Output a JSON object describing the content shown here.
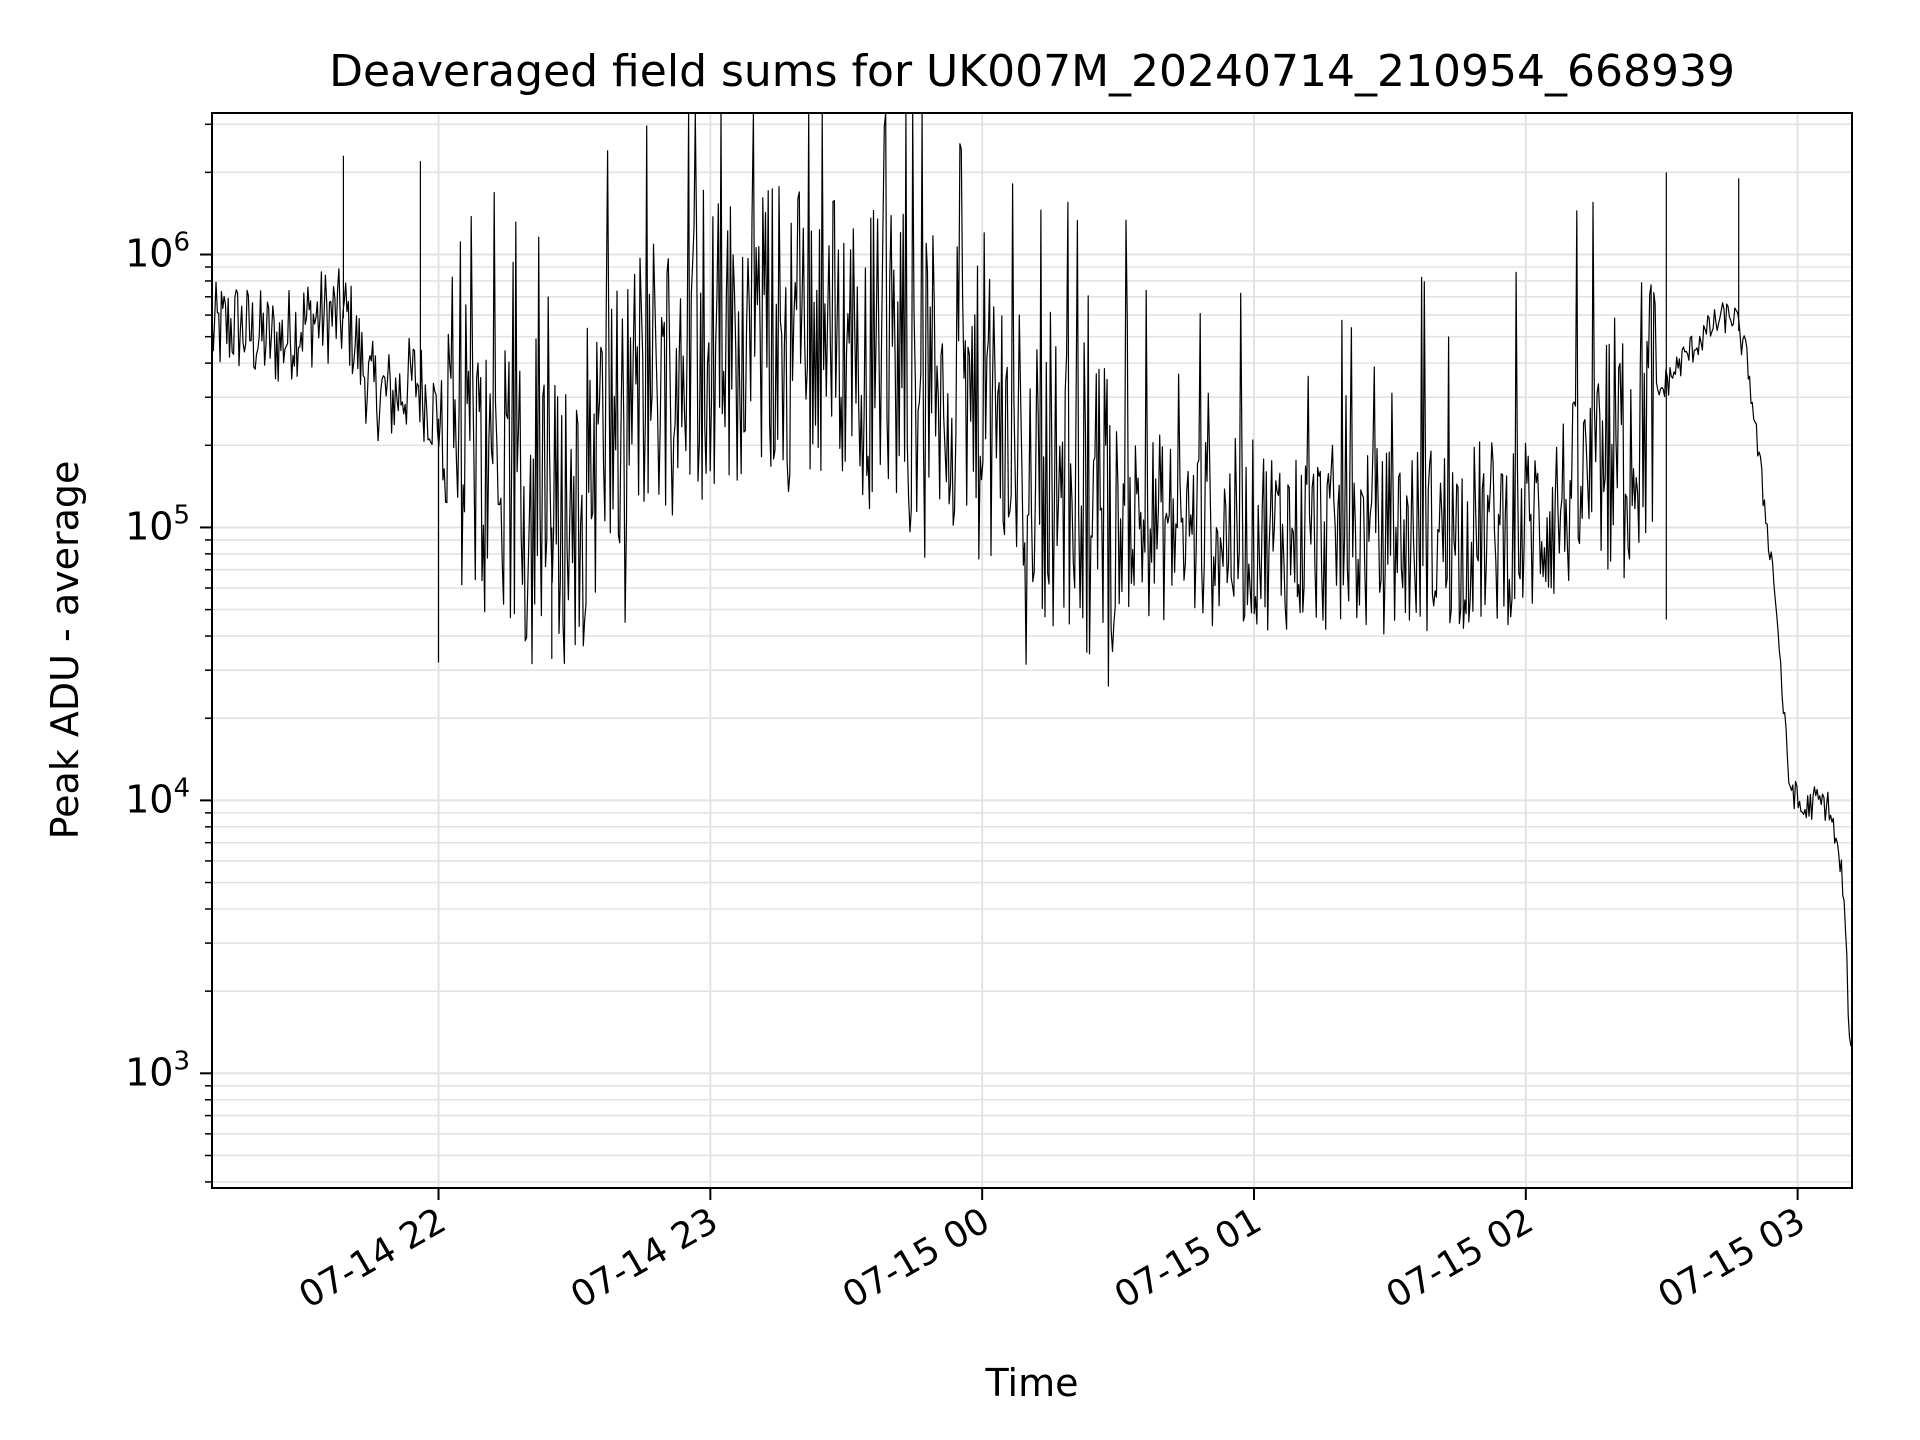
{
  "chart_data": {
    "type": "line",
    "title": "Deaveraged field sums for UK007M_20240714_210954_668939",
    "xlabel": "Time",
    "ylabel": "Peak ADU - average",
    "yscale": "log",
    "ylim": [
      380,
      3300000
    ],
    "xlim": [
      "2024-07-14 21:10",
      "2024-07-15 03:12"
    ],
    "grid": true,
    "line_color": "#000000",
    "grid_color": "#e3e3e3",
    "x_ticks": [
      {
        "value": "2024-07-14 22:00",
        "label": "07-14 22"
      },
      {
        "value": "2024-07-14 23:00",
        "label": "07-14 23"
      },
      {
        "value": "2024-07-15 00:00",
        "label": "07-15 00"
      },
      {
        "value": "2024-07-15 01:00",
        "label": "07-15 01"
      },
      {
        "value": "2024-07-15 02:00",
        "label": "07-15 02"
      },
      {
        "value": "2024-07-15 03:00",
        "label": "07-15 03"
      }
    ],
    "y_ticks": [
      {
        "value": 1000,
        "base": "10",
        "exp": "3"
      },
      {
        "value": 10000,
        "base": "10",
        "exp": "4"
      },
      {
        "value": 100000,
        "base": "10",
        "exp": "5"
      },
      {
        "value": 1000000,
        "base": "10",
        "exp": "6"
      }
    ],
    "series": [
      {
        "x": [
          "2024-07-14 21:10",
          "2024-07-14 21:15",
          "2024-07-14 21:20",
          "2024-07-14 21:25",
          "2024-07-14 21:30",
          "2024-07-14 21:35",
          "2024-07-14 21:40",
          "2024-07-14 21:45",
          "2024-07-14 21:50",
          "2024-07-14 21:55",
          "2024-07-14 22:00",
          "2024-07-14 22:05",
          "2024-07-14 22:10",
          "2024-07-14 22:15",
          "2024-07-14 22:20",
          "2024-07-14 22:25",
          "2024-07-14 22:30",
          "2024-07-14 22:35",
          "2024-07-14 22:40",
          "2024-07-14 22:45",
          "2024-07-14 22:50",
          "2024-07-14 22:55",
          "2024-07-14 23:00",
          "2024-07-14 23:10",
          "2024-07-14 23:20",
          "2024-07-14 23:30",
          "2024-07-14 23:40",
          "2024-07-14 23:50",
          "2024-07-15 00:00",
          "2024-07-15 00:10",
          "2024-07-15 00:20",
          "2024-07-15 00:30",
          "2024-07-15 00:40",
          "2024-07-15 00:50",
          "2024-07-15 01:00",
          "2024-07-15 01:10",
          "2024-07-15 01:20",
          "2024-07-15 01:30",
          "2024-07-15 01:40",
          "2024-07-15 01:50",
          "2024-07-15 02:00",
          "2024-07-15 02:05",
          "2024-07-15 02:10",
          "2024-07-15 02:15",
          "2024-07-15 02:20",
          "2024-07-15 02:25",
          "2024-07-15 02:30",
          "2024-07-15 02:35",
          "2024-07-15 02:40",
          "2024-07-15 02:43",
          "2024-07-15 02:46",
          "2024-07-15 02:49",
          "2024-07-15 02:52",
          "2024-07-15 02:55",
          "2024-07-15 02:58",
          "2024-07-15 03:01",
          "2024-07-15 03:04",
          "2024-07-15 03:07",
          "2024-07-15 03:10",
          "2024-07-15 03:12"
        ],
        "y": [
          520000,
          550000,
          500000,
          480000,
          560000,
          600000,
          580000,
          320000,
          300000,
          350000,
          250000,
          200000,
          150000,
          120000,
          110000,
          100000,
          120000,
          200000,
          250000,
          350000,
          400000,
          450000,
          480000,
          520000,
          550000,
          500000,
          450000,
          350000,
          250000,
          180000,
          130000,
          110000,
          100000,
          95000,
          95000,
          92000,
          90000,
          90000,
          92000,
          95000,
          100000,
          110000,
          130000,
          150000,
          180000,
          250000,
          320000,
          420000,
          520000,
          580000,
          600000,
          400000,
          150000,
          60000,
          12000,
          9000,
          10000,
          9500,
          5000,
          900
        ]
      }
    ],
    "spikes": [
      {
        "x": "2024-07-14 21:39",
        "y": 2300000
      },
      {
        "x": "2024-07-14 21:56",
        "y": 2200000
      },
      {
        "x": "2024-07-15 02:31",
        "y": 2000000
      },
      {
        "x": "2024-07-15 02:47",
        "y": 1900000
      },
      {
        "x": "2024-07-14 22:00",
        "y": 32000
      },
      {
        "x": "2024-07-14 22:25",
        "y": 33000
      },
      {
        "x": "2024-07-15 02:31",
        "y": 46000
      }
    ]
  }
}
